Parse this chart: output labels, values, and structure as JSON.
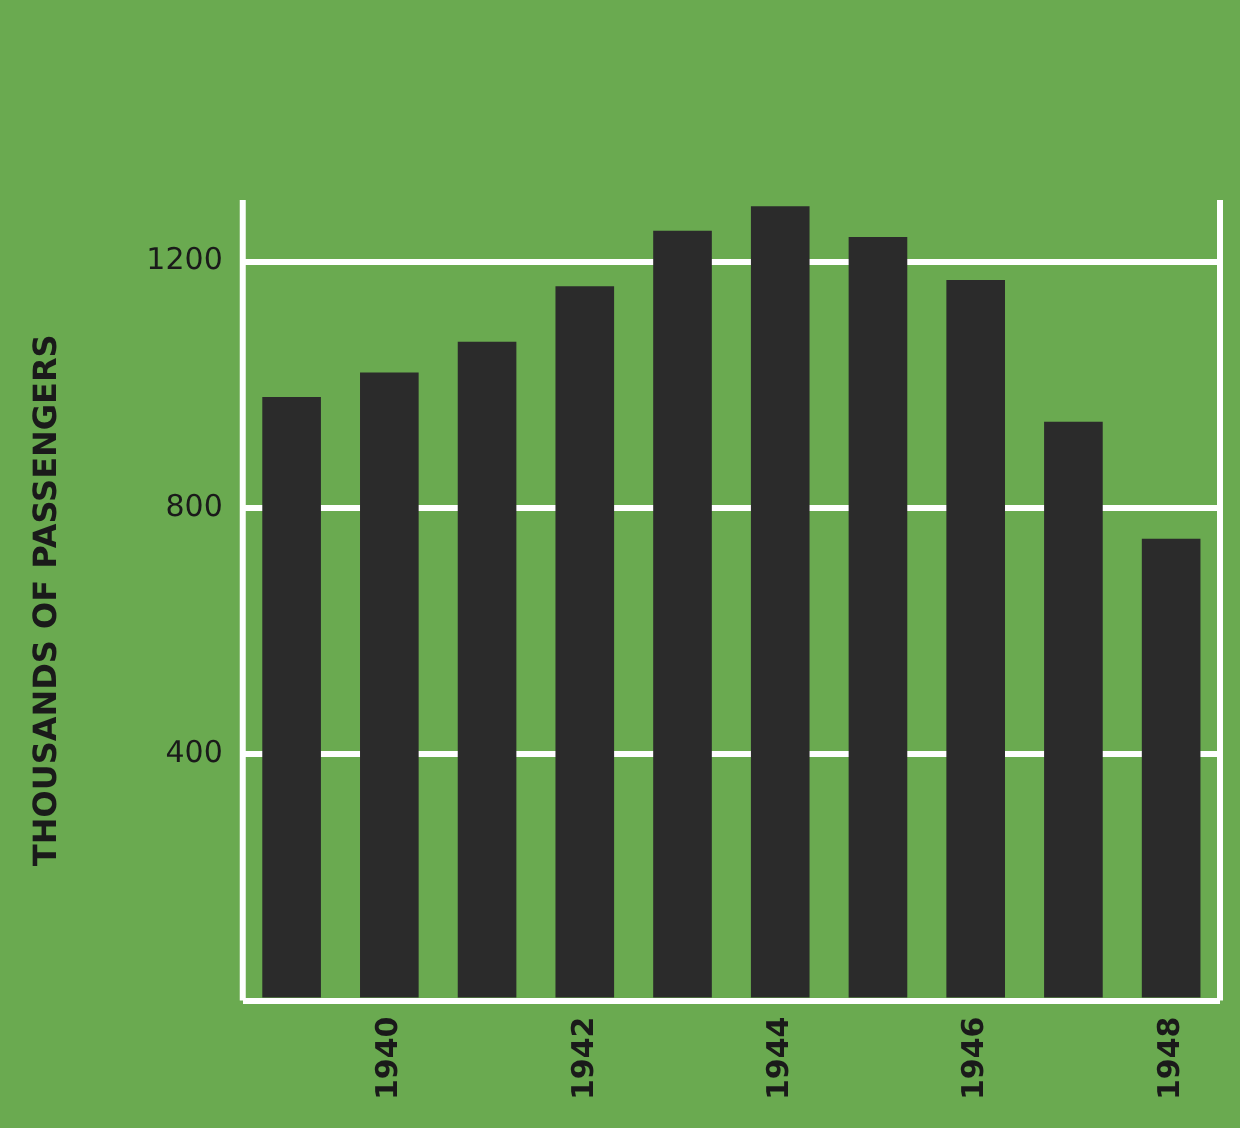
{
  "chart_data": {
    "type": "bar",
    "ylabel": "THOUSANDS OF PASSENGERS",
    "categories": [
      null,
      "1940",
      null,
      "1942",
      null,
      "1944",
      null,
      "1946",
      null,
      "1948"
    ],
    "values": [
      980,
      1020,
      1070,
      1160,
      1250,
      1290,
      1240,
      1170,
      940,
      750
    ],
    "color": "#2b2b2b",
    "ylim": [
      0,
      1300
    ],
    "yticks": [
      {
        "value": 0,
        "label": null
      },
      400,
      800,
      1200
    ],
    "grid": "y"
  }
}
